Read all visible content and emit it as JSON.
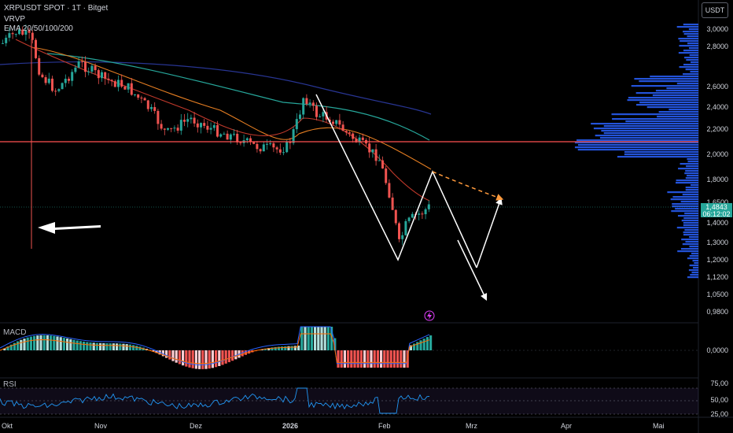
{
  "header": {
    "symbol_line": "XRPUSDT SPOT · 1T · Bitget",
    "indicator_vrvp": "VRVP",
    "indicator_ema": "EMA 20/50/100/200"
  },
  "currency_badge": "USDT",
  "current_price": {
    "price": "1,4843",
    "countdown": "06:12:02"
  },
  "price_axis": [
    "3,0000",
    "2,8000",
    "2,6000",
    "2,4000",
    "2,2000",
    "2,0000",
    "1,8000",
    "1,6500",
    "1,5000",
    "1,4000",
    "1,3000",
    "1,2000",
    "1,1200",
    "1,0500",
    "0,9800"
  ],
  "time_axis": [
    "Okt",
    "Nov",
    "Dez",
    "2026",
    "Feb",
    "Mrz",
    "Apr",
    "Mai"
  ],
  "macd": {
    "label": "MACD",
    "zero_label": "0,0000"
  },
  "rsi": {
    "label": "RSI",
    "levels": [
      "75,00",
      "50,00",
      "25,00"
    ]
  },
  "colors": {
    "up": "#26a69a",
    "down": "#ef5350",
    "ema20": "#c0392b",
    "ema50": "#e67e22",
    "ema100": "#26a69a",
    "ema200": "#283593",
    "support": "#ff5252",
    "vrvp": "#2962ff"
  },
  "icons": [
    "lightning-icon"
  ]
}
